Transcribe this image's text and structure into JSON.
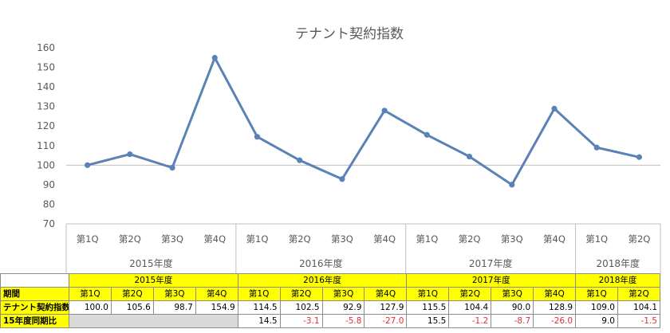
{
  "chart_data": {
    "type": "line",
    "title": "テナント契約指数",
    "ylim": [
      70,
      160
    ],
    "yticks": [
      70,
      80,
      90,
      100,
      110,
      120,
      130,
      140,
      150,
      160
    ],
    "reference_line": 100,
    "grid": false,
    "categories": [
      "第1Q",
      "第2Q",
      "第3Q",
      "第4Q",
      "第1Q",
      "第2Q",
      "第3Q",
      "第4Q",
      "第1Q",
      "第2Q",
      "第3Q",
      "第4Q",
      "第1Q",
      "第2Q"
    ],
    "year_groups": [
      {
        "label": "2015年度",
        "count": 4
      },
      {
        "label": "2016年度",
        "count": 4
      },
      {
        "label": "2017年度",
        "count": 4
      },
      {
        "label": "2018年度",
        "count": 2
      }
    ],
    "series": [
      {
        "values": [
          100.0,
          105.6,
          98.7,
          154.9,
          114.5,
          102.5,
          92.9,
          127.9,
          115.5,
          104.4,
          90.0,
          128.9,
          109.0,
          104.1
        ],
        "color": "#5b82b5"
      }
    ]
  },
  "table": {
    "period_label": "期間",
    "index_label": "テナント契約指数",
    "yoy_label": "15年度同期比",
    "index_values": [
      "100.0",
      "105.6",
      "98.7",
      "154.9",
      "114.5",
      "102.5",
      "92.9",
      "127.9",
      "115.5",
      "104.4",
      "90.0",
      "128.9",
      "109.0",
      "104.1"
    ],
    "yoy_values": [
      "",
      "",
      "",
      "",
      "14.5",
      "-3.1",
      "-5.8",
      "-27.0",
      "15.5",
      "-1.2",
      "-8.7",
      "-26.0",
      "9.0",
      "-1.5"
    ]
  },
  "colors": {
    "line": "#5b82b5",
    "header_fill": "#ffff00",
    "negative_text": "#e03030",
    "axis": "#bfbfbf"
  }
}
